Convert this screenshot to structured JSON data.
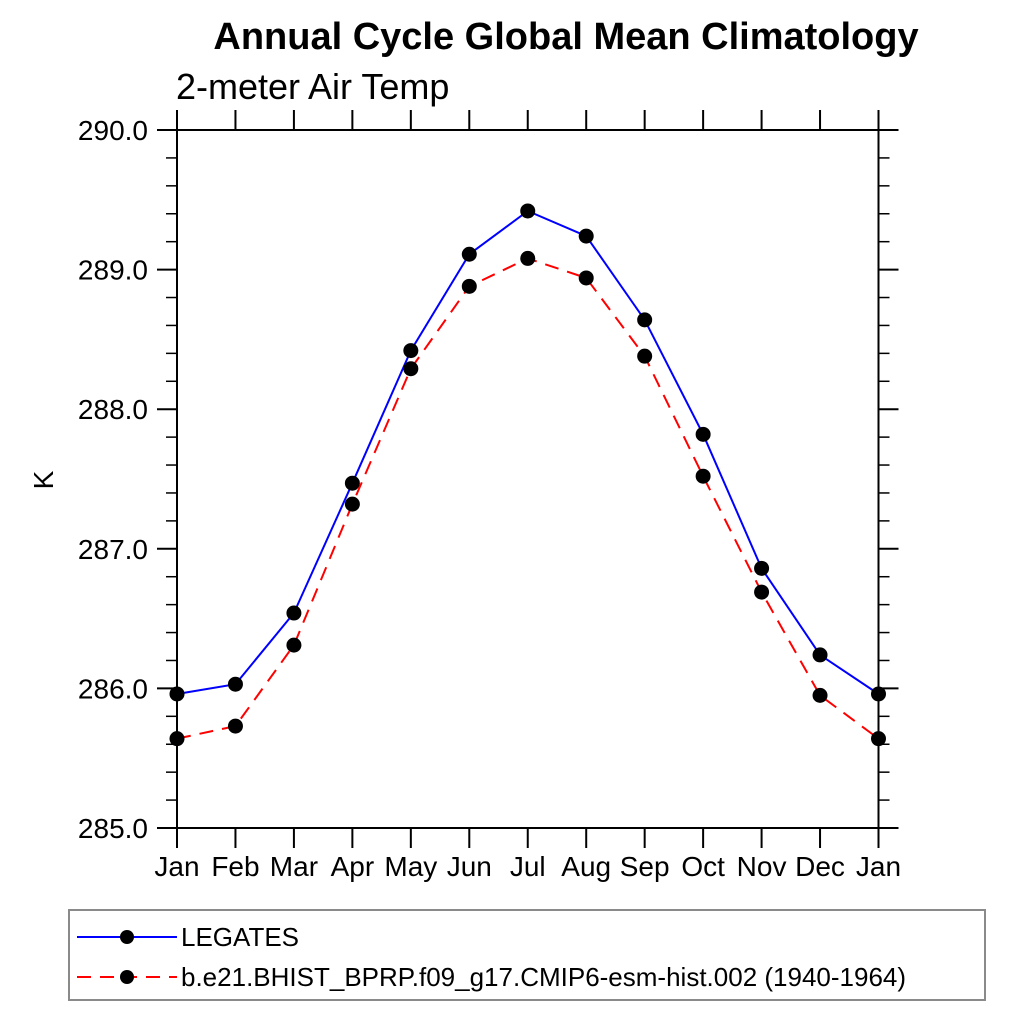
{
  "header": {
    "title": "Annual Cycle Global Mean Climatology",
    "subtitle": "2-meter Air Temp"
  },
  "chart_data": {
    "type": "line",
    "title": "Annual Cycle Global Mean Climatology",
    "subtitle": "2-meter Air Temp",
    "xlabel": "",
    "ylabel": "K",
    "categories": [
      "Jan",
      "Feb",
      "Mar",
      "Apr",
      "May",
      "Jun",
      "Jul",
      "Aug",
      "Sep",
      "Oct",
      "Nov",
      "Dec",
      "Jan"
    ],
    "ylim": [
      285.0,
      290.0
    ],
    "ytick_major": [
      285.0,
      286.0,
      287.0,
      288.0,
      289.0,
      290.0
    ],
    "ytick_labels": [
      "285.0",
      "286.0",
      "287.0",
      "288.0",
      "289.0",
      "290.0"
    ],
    "ytick_minor_interval": 0.2,
    "grid": false,
    "legend_position": "bottom-left-box",
    "axis_color": "#000000",
    "marker_radius_px": 7.5,
    "series": [
      {
        "name": "LEGATES",
        "color": "#0000ff",
        "style": "solid",
        "marker": "circle",
        "marker_color": "#000000",
        "values": [
          285.96,
          286.03,
          286.54,
          287.47,
          288.42,
          289.11,
          289.42,
          289.24,
          288.64,
          287.82,
          286.86,
          286.24,
          285.96
        ]
      },
      {
        "name": "b.e21.BHIST_BPRP.f09_g17.CMIP6-esm-hist.002 (1940-1964)",
        "color": "#ff0000",
        "style": "dashed",
        "marker": "circle",
        "marker_color": "#000000",
        "values": [
          285.64,
          285.73,
          286.31,
          287.32,
          288.29,
          288.88,
          289.08,
          288.94,
          288.38,
          287.52,
          286.69,
          285.95,
          285.64
        ]
      }
    ]
  }
}
